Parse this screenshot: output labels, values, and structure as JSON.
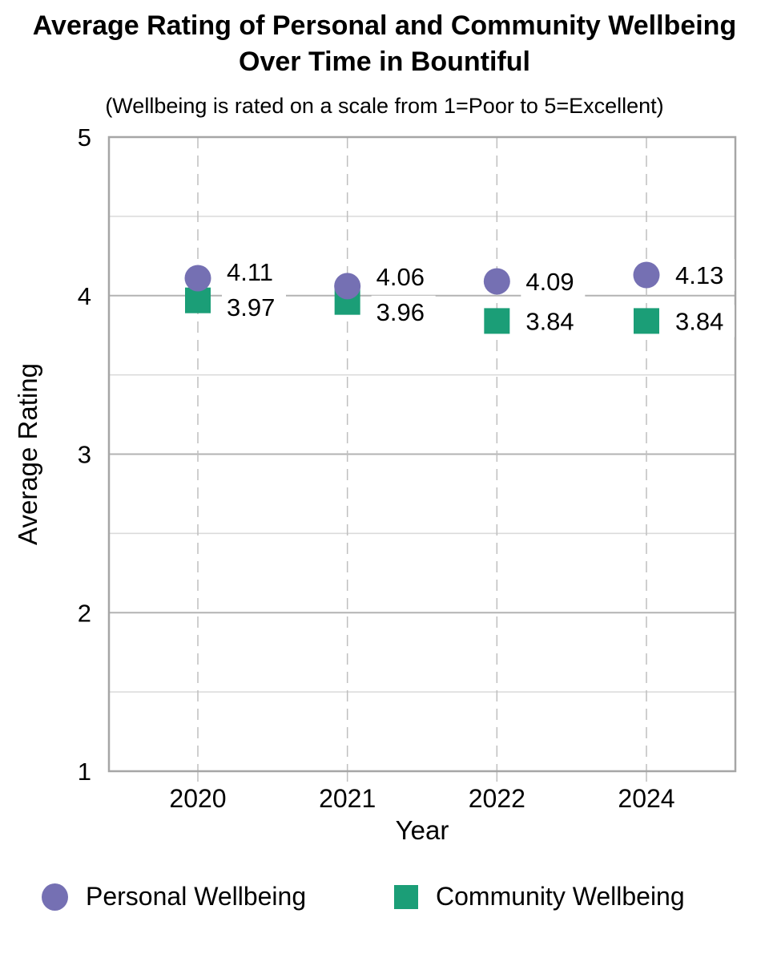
{
  "chart_data": {
    "type": "scatter",
    "title_lines": [
      "Average Rating of Personal and Community Wellbeing",
      "Over Time in Bountiful"
    ],
    "subtitle": "(Wellbeing is rated on a scale from 1=Poor to 5=Excellent)",
    "xlabel": "Year",
    "ylabel": "Average Rating",
    "categories": [
      "2020",
      "2021",
      "2022",
      "2024"
    ],
    "series": [
      {
        "name": "Personal Wellbeing",
        "marker": "circle",
        "color": "#7570b3",
        "values": [
          4.11,
          4.06,
          4.09,
          4.13
        ]
      },
      {
        "name": "Community Wellbeing",
        "marker": "square",
        "color": "#1b9e77",
        "values": [
          3.97,
          3.96,
          3.84,
          3.84
        ]
      }
    ],
    "ylim": [
      1,
      5
    ],
    "y_tick_labels": [
      "1",
      "2",
      "3",
      "4",
      "5"
    ],
    "y_major_step": 1,
    "y_minor_step": 0.5,
    "grid": {
      "horizontal": "solid",
      "vertical": "dashed"
    },
    "data_labels": true,
    "data_label_decimals": 2,
    "legend_position": "bottom",
    "colors": {
      "major_gridline": "#b3b3b3",
      "minor_gridline": "#d9d9d9",
      "dashed_gridline": "#bfbfbf",
      "plot_border": "#a6a6a6",
      "text": "#000000",
      "background": "#ffffff"
    }
  }
}
